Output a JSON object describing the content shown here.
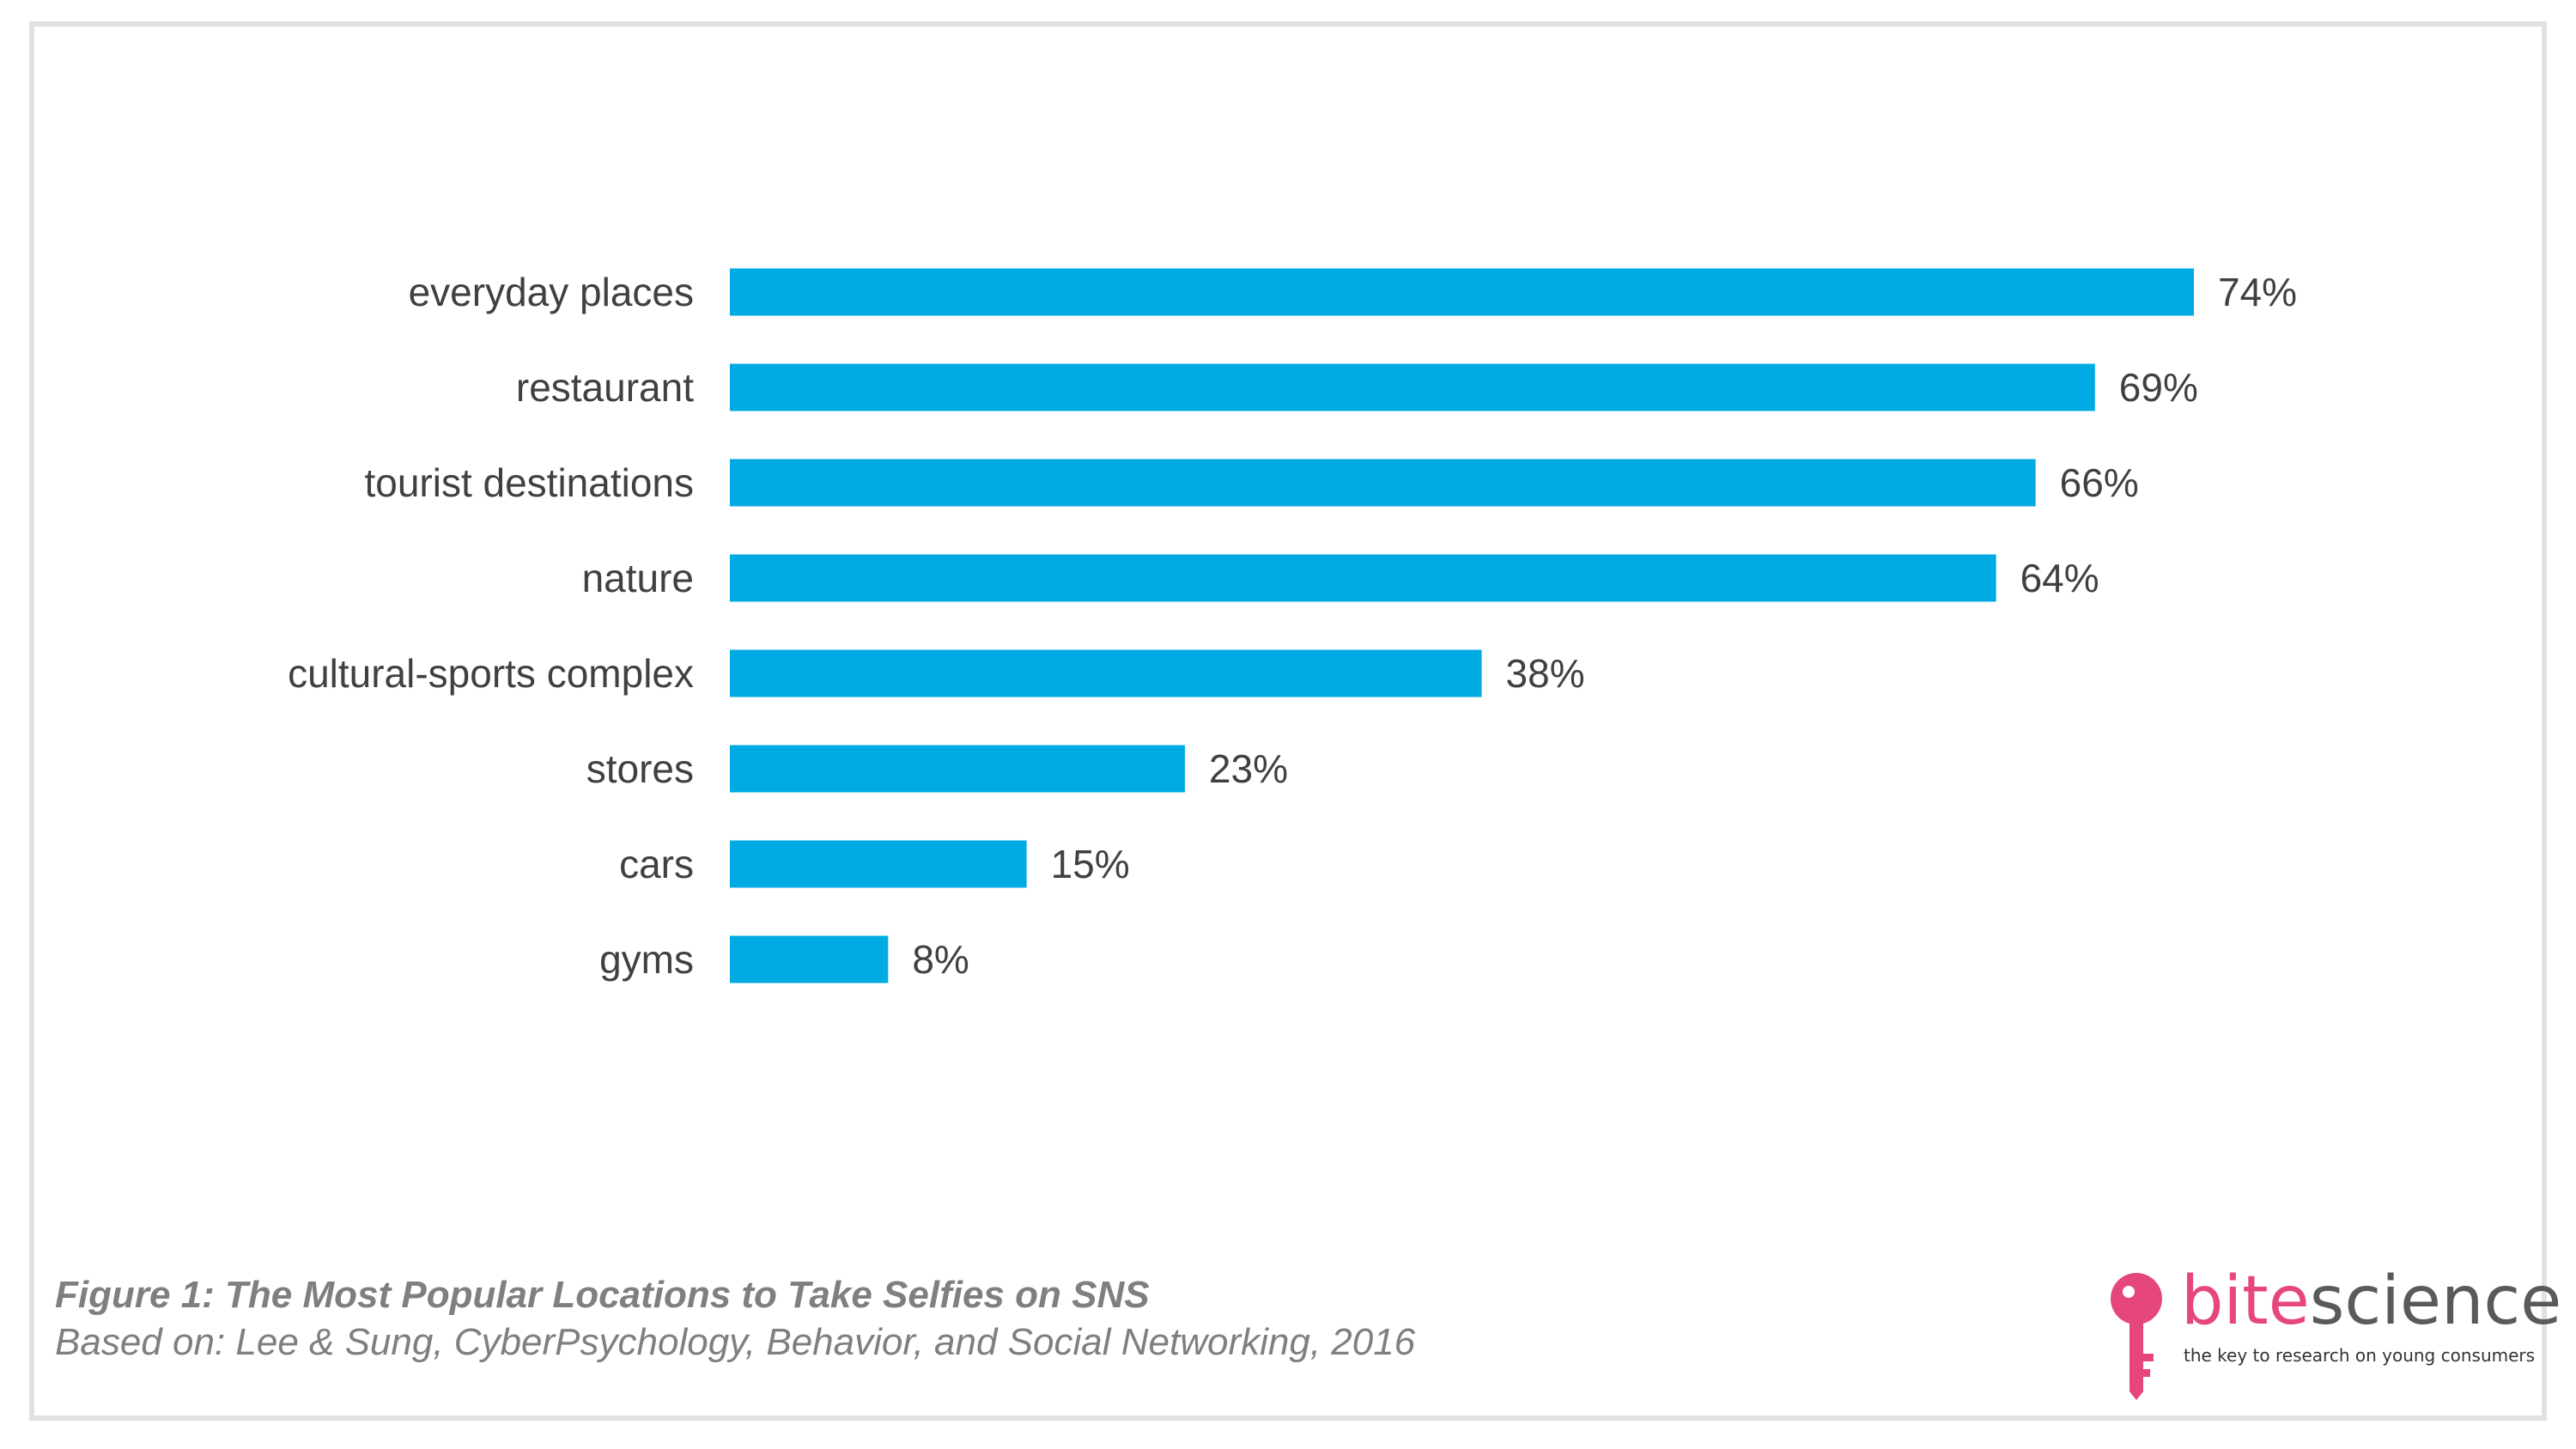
{
  "chart_data": {
    "type": "bar",
    "orientation": "horizontal",
    "categories": [
      "everyday places",
      "restaurant",
      "tourist destinations",
      "nature",
      "cultural-sports complex",
      "stores",
      "cars",
      "gyms"
    ],
    "values": [
      74,
      69,
      66,
      64,
      38,
      23,
      15,
      8
    ],
    "value_labels": [
      "74%",
      "69%",
      "66%",
      "64%",
      "38%",
      "23%",
      "15%",
      "8%"
    ],
    "unit": "%",
    "xlim": [
      0,
      74
    ],
    "bar_color": "#00aae2",
    "grid": false,
    "legend": "none"
  },
  "caption": {
    "title": "Figure 1: The Most Popular Locations to Take Selfies on SNS",
    "source": "Based on: Lee & Sung, CyberPsychology, Behavior, and Social Networking, 2016"
  },
  "logo": {
    "word_bite": "bite",
    "word_science": "science",
    "tagline": "the key to research on young consumers",
    "icon": "key-icon",
    "brand_color": "#e5467d"
  },
  "colors": {
    "label_text": "#404040",
    "caption_text": "#7f7f7f",
    "frame_border": "#e1e1e1"
  }
}
